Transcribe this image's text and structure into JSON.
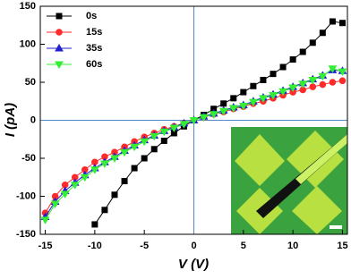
{
  "chart_data": {
    "type": "line",
    "xlabel": "V (V)",
    "ylabel": "I (pA)",
    "x": [
      -15,
      -14,
      -13,
      -12,
      -11,
      -10,
      -9,
      -8,
      -7,
      -6,
      -5,
      -4,
      -3,
      -2,
      -1,
      0,
      1,
      2,
      3,
      4,
      5,
      6,
      7,
      8,
      9,
      10,
      11,
      12,
      13,
      14,
      15
    ],
    "series": [
      {
        "name": "0s",
        "color": "#000000",
        "marker": "square",
        "values": [
          null,
          null,
          null,
          null,
          null,
          -137,
          -118,
          -98,
          -80,
          -63,
          -50,
          -38,
          -27,
          -17,
          -8,
          0,
          7,
          15,
          22,
          29,
          37,
          45,
          53,
          61,
          70,
          80,
          90,
          102,
          115,
          130,
          128
        ]
      },
      {
        "name": "15s",
        "color": "#ff2a2a",
        "marker": "circle",
        "values": [
          -122,
          -100,
          -85,
          -75,
          -65,
          -55,
          -48,
          -42,
          -35,
          -28,
          -22,
          -17,
          -12,
          -8,
          -4,
          0,
          4,
          8,
          11,
          15,
          18,
          22,
          25,
          29,
          33,
          37,
          40,
          44,
          47,
          50,
          52
        ]
      },
      {
        "name": "35s",
        "color": "#2020d0",
        "marker": "triangle-up",
        "values": [
          -127,
          -107,
          -93,
          -82,
          -72,
          -63,
          -55,
          -48,
          -40,
          -33,
          -26,
          -20,
          -14,
          -9,
          -4,
          0,
          5,
          9,
          13,
          17,
          20,
          25,
          30,
          34,
          39,
          44,
          49,
          54,
          59,
          66,
          65
        ]
      },
      {
        "name": "60s",
        "color": "#33ee33",
        "marker": "triangle-down",
        "values": [
          -131,
          -110,
          -97,
          -85,
          -75,
          -65,
          -57,
          -50,
          -42,
          -35,
          -28,
          -21,
          -15,
          -10,
          -5,
          0,
          4,
          8,
          12,
          16,
          19,
          24,
          29,
          33,
          38,
          43,
          48,
          53,
          58,
          68,
          64
        ]
      }
    ],
    "xlim": [
      -15.5,
      15.5
    ],
    "ylim": [
      -150,
      150
    ],
    "xticks": [
      -15,
      -10,
      -5,
      0,
      5,
      10,
      15
    ],
    "yticks": [
      -150,
      -100,
      -50,
      0,
      50,
      100,
      150
    ],
    "zero_lines": true,
    "legend": "upper-left"
  }
}
